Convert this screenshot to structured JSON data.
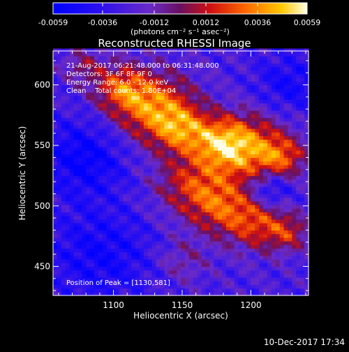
{
  "chart_data": {
    "type": "heatmap",
    "title": "Reconstructed RHESSI Image",
    "xlabel": "Heliocentric X (arcsec)",
    "ylabel": "Heliocentric Y (arcsec)",
    "xlim": [
      1056,
      1242
    ],
    "ylim": [
      426,
      628
    ],
    "x_ticks": [
      1100,
      1150,
      1200
    ],
    "y_ticks": [
      450,
      500,
      550,
      600
    ],
    "colorbar": {
      "min": -0.0059,
      "max": 0.0059,
      "tick_values": [
        -0.0059,
        -0.0036,
        -0.0012,
        0.0012,
        0.0036,
        0.0059
      ],
      "tick_labels": [
        "-0.0059",
        "-0.0036",
        "-0.0012",
        "0.0012",
        "0.0036",
        "0.0059"
      ],
      "units_label": "(photons cm⁻² s⁻¹ asec⁻²)"
    },
    "annotations": {
      "time_range": "21-Aug-2017 06:21:48.000 to 06:31:48.000",
      "detectors": "Detectors: 3F 6F 8F 9F 0",
      "energy_range": "Energy Range: 6.0 - 12.0 keV",
      "method_counts": "Clean    Total counts: 1.80E+04",
      "peak": "Position of Peak = [1130,581]"
    },
    "peak": [
      1130,
      581
    ],
    "sources": [
      {
        "x": 1130,
        "y": 581,
        "sigma": 20,
        "amp": 0.0059
      },
      {
        "x": 1105,
        "y": 598,
        "sigma": 14,
        "amp": 0.0042
      },
      {
        "x": 1150,
        "y": 563,
        "sigma": 14,
        "amp": 0.004
      },
      {
        "x": 1178,
        "y": 552,
        "sigma": 15,
        "amp": 0.0046
      },
      {
        "x": 1200,
        "y": 548,
        "sigma": 20,
        "amp": 0.0052
      },
      {
        "x": 1224,
        "y": 540,
        "sigma": 12,
        "amp": 0.0034
      },
      {
        "x": 1155,
        "y": 518,
        "sigma": 18,
        "amp": 0.0036
      },
      {
        "x": 1178,
        "y": 500,
        "sigma": 17,
        "amp": 0.004
      },
      {
        "x": 1205,
        "y": 486,
        "sigma": 16,
        "amp": 0.004
      },
      {
        "x": 1228,
        "y": 478,
        "sigma": 11,
        "amp": 0.003
      },
      {
        "x": 1078,
        "y": 616,
        "sigma": 10,
        "amp": 0.0024
      },
      {
        "x": 1150,
        "y": 455,
        "sigma": 13,
        "amp": 0.0018
      }
    ],
    "negative_regions": [
      {
        "x": 1078,
        "y": 540,
        "sigma": 22,
        "amp": -0.003
      },
      {
        "x": 1214,
        "y": 513,
        "sigma": 11,
        "amp": -0.0034
      },
      {
        "x": 1090,
        "y": 460,
        "sigma": 28,
        "amp": -0.0024
      },
      {
        "x": 1228,
        "y": 600,
        "sigma": 18,
        "amp": -0.0022
      }
    ]
  },
  "footer": {
    "date": "10-Dec-2017 17:34"
  }
}
